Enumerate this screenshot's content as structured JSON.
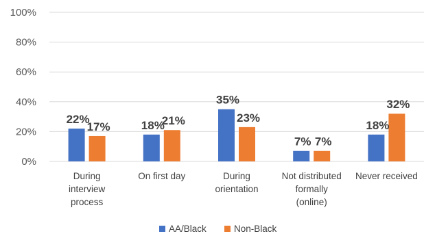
{
  "chart_data": {
    "type": "bar",
    "categories": [
      [
        "During",
        "interview",
        "process"
      ],
      [
        "On first day"
      ],
      [
        "During",
        "orientation"
      ],
      [
        "Not distributed",
        "formally",
        "(online)"
      ],
      [
        "Never received"
      ]
    ],
    "series": [
      {
        "name": "AA/Black",
        "color": "#4472C4",
        "values": [
          22,
          18,
          35,
          7,
          18
        ],
        "labels": [
          "22%",
          "18%",
          "35%",
          "7%",
          "18%"
        ]
      },
      {
        "name": "Non-Black",
        "color": "#ED7D31",
        "values": [
          17,
          21,
          23,
          7,
          32
        ],
        "labels": [
          "17%",
          "21%",
          "23%",
          "7%",
          "32%"
        ]
      }
    ],
    "ylim": [
      0,
      100
    ],
    "yticks": [
      "0%",
      "20%",
      "40%",
      "60%",
      "80%",
      "100%"
    ],
    "title": "",
    "xlabel": "",
    "ylabel": "",
    "grid": true,
    "legend_position": "bottom"
  }
}
